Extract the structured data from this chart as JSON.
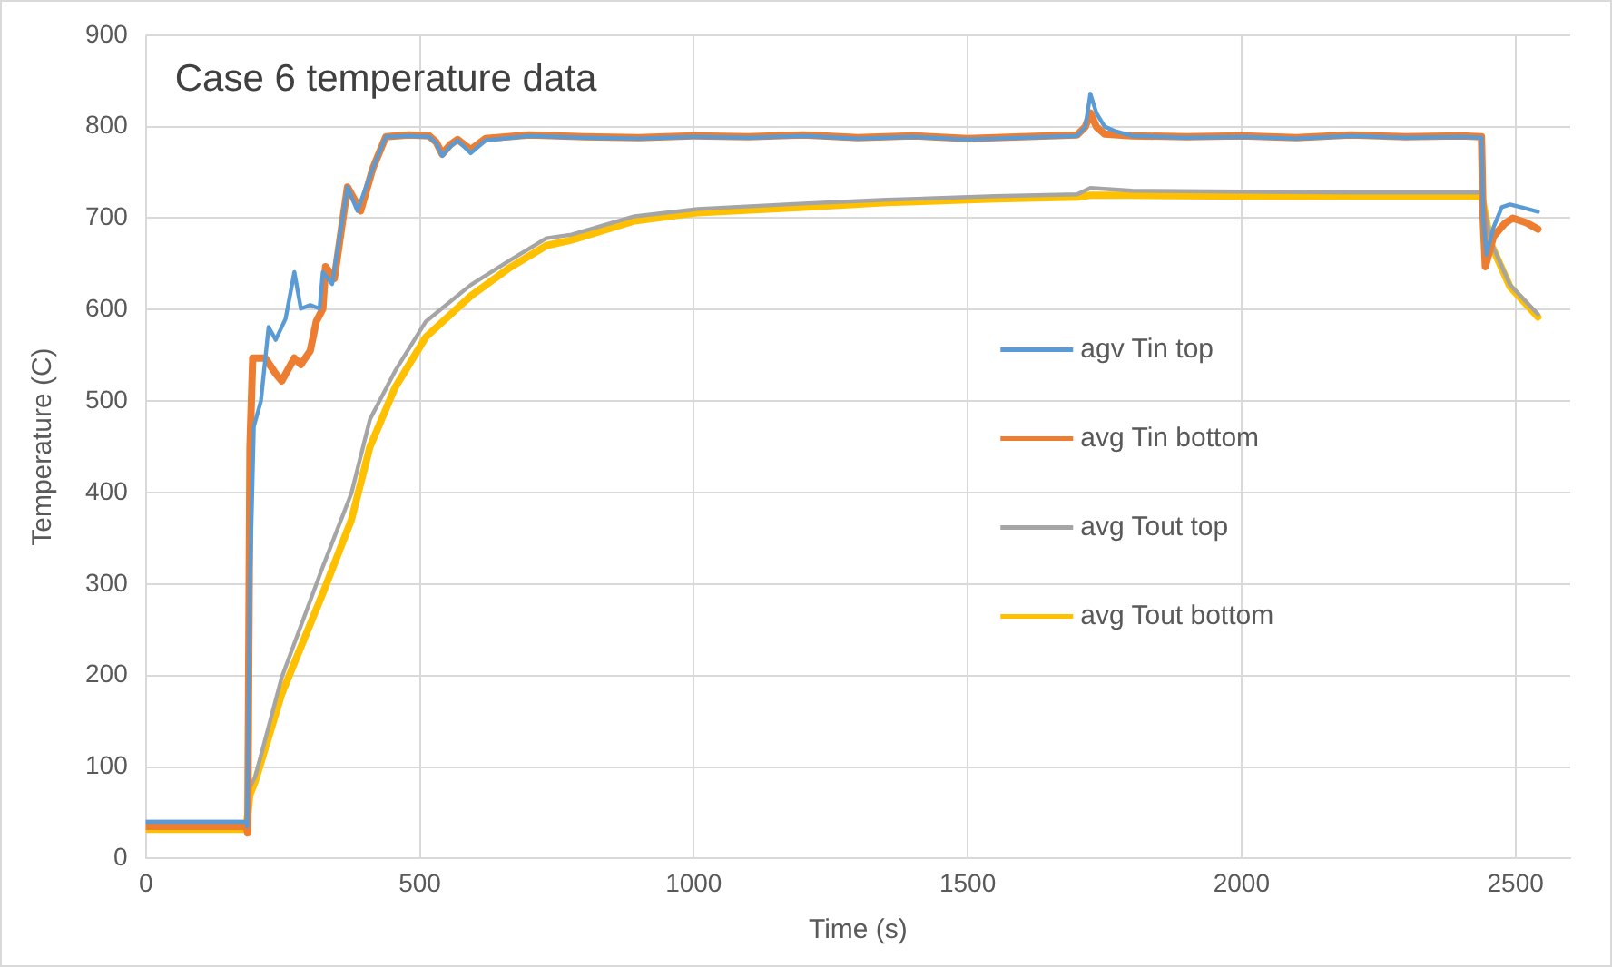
{
  "chart_data": {
    "type": "line",
    "title": "Case 6 temperature data",
    "xlabel": "Time (s)",
    "ylabel": "Temperature (C)",
    "xlim": [
      0,
      2600
    ],
    "xticks": [
      0,
      500,
      1000,
      1500,
      2000,
      2500
    ],
    "ylim": [
      0,
      900
    ],
    "yticks": [
      0,
      100,
      200,
      300,
      400,
      500,
      600,
      700,
      800,
      900
    ],
    "grid": true,
    "legend": "right",
    "marker": "none",
    "line_style": "solid",
    "series": [
      {
        "name": "agv Tin top",
        "color": "#5b9bd5",
        "x": [
          0,
          100,
          183,
          185,
          190,
          197,
          210,
          224,
          237,
          255,
          271,
          283,
          300,
          317,
          323,
          340,
          368,
          386,
          414,
          438,
          480,
          517,
          530,
          541,
          555,
          569,
          593,
          620,
          700,
          800,
          900,
          1000,
          1100,
          1200,
          1300,
          1400,
          1500,
          1600,
          1700,
          1715,
          1724,
          1735,
          1750,
          1770,
          1800,
          1900,
          2000,
          2100,
          2200,
          2300,
          2400,
          2438,
          2441,
          2447,
          2460,
          2475,
          2490,
          2510,
          2541
        ],
        "values": [
          40,
          40,
          40,
          35,
          300,
          472,
          500,
          581,
          567,
          590,
          641,
          601,
          605,
          601,
          641,
          628,
          734,
          708,
          754,
          789,
          790,
          789,
          782,
          768,
          778,
          785,
          771,
          785,
          790,
          788,
          787,
          789,
          788,
          790,
          787,
          789,
          786,
          788,
          790,
          800,
          836,
          815,
          800,
          795,
          790,
          788,
          789,
          787,
          790,
          788,
          789,
          788,
          700,
          660,
          690,
          712,
          715,
          712,
          707
        ]
      },
      {
        "name": "avg Tin bottom",
        "color": "#ed7d31",
        "x": [
          0,
          100,
          183,
          186,
          190,
          195,
          218,
          237,
          248,
          271,
          283,
          300,
          311,
          323,
          328,
          344,
          368,
          392,
          414,
          438,
          480,
          517,
          530,
          541,
          555,
          569,
          593,
          620,
          700,
          800,
          900,
          1000,
          1100,
          1200,
          1300,
          1400,
          1500,
          1600,
          1700,
          1715,
          1724,
          1735,
          1750,
          1800,
          1900,
          2000,
          2100,
          2200,
          2300,
          2400,
          2438,
          2441,
          2445,
          2460,
          2480,
          2495,
          2520,
          2541
        ],
        "values": [
          35,
          35,
          35,
          28,
          450,
          547,
          547,
          530,
          522,
          547,
          540,
          555,
          587,
          601,
          647,
          634,
          734,
          708,
          754,
          789,
          791,
          790,
          783,
          770,
          780,
          786,
          775,
          787,
          791,
          789,
          788,
          790,
          789,
          791,
          788,
          790,
          787,
          789,
          791,
          800,
          815,
          800,
          792,
          790,
          789,
          790,
          788,
          791,
          789,
          790,
          789,
          700,
          647,
          680,
          694,
          700,
          695,
          688
        ]
      },
      {
        "name": "avg Tout top",
        "color": "#a5a5a5",
        "x": [
          0,
          100,
          183,
          190,
          200,
          248,
          323,
          375,
          409,
          455,
          511,
          593,
          662,
          731,
          777,
          892,
          1007,
          1200,
          1351,
          1550,
          1700,
          1724,
          1800,
          2000,
          2200,
          2438,
          2441,
          2455,
          2490,
          2541
        ],
        "values": [
          40,
          40,
          40,
          78,
          90,
          198,
          319,
          399,
          480,
          533,
          587,
          627,
          653,
          678,
          682,
          702,
          710,
          716,
          720,
          724,
          726,
          733,
          730,
          729,
          728,
          728,
          720,
          674,
          627,
          595
        ]
      },
      {
        "name": "avg Tout bottom",
        "color": "#ffc000",
        "x": [
          0,
          100,
          183,
          190,
          200,
          248,
          323,
          375,
          409,
          455,
          511,
          593,
          662,
          731,
          777,
          892,
          1007,
          1200,
          1351,
          1550,
          1700,
          1724,
          1800,
          2000,
          2200,
          2438,
          2441,
          2455,
          2490,
          2541
        ],
        "values": [
          32,
          32,
          32,
          70,
          85,
          180,
          290,
          370,
          450,
          515,
          570,
          615,
          645,
          670,
          676,
          697,
          706,
          712,
          717,
          721,
          723,
          725,
          725,
          724,
          724,
          724,
          716,
          672,
          625,
          592
        ]
      }
    ]
  }
}
